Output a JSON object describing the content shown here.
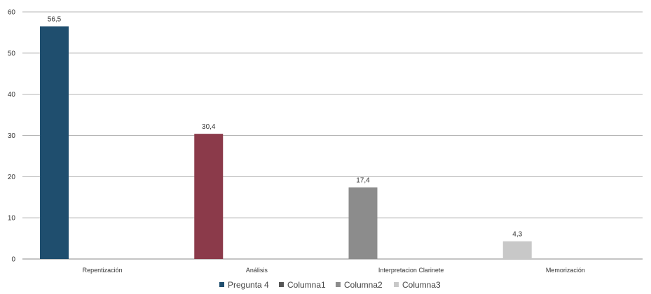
{
  "chart_data": {
    "type": "bar",
    "categories": [
      "Repentización",
      "Análisis",
      "Interpretacion Clarinete",
      "Memorización"
    ],
    "values": [
      56.5,
      30.4,
      17.4,
      4.3
    ],
    "value_labels": [
      "56,5",
      "30,4",
      "17,4",
      "4,3"
    ],
    "colors": [
      "#1f4e6e",
      "#8b3a4a",
      "#8c8c8c",
      "#c8c8c8"
    ],
    "yticks": [
      0,
      10,
      20,
      30,
      40,
      50,
      60
    ],
    "ylim": [
      0,
      60
    ],
    "grid": true,
    "legend_position": "bottom",
    "legend": [
      {
        "name": "Pregunta 4",
        "color": "#1f4e6e"
      },
      {
        "name": "Columna1",
        "color": "#555555"
      },
      {
        "name": "Columna2",
        "color": "#8c8c8c"
      },
      {
        "name": "Columna3",
        "color": "#c8c8c8"
      }
    ]
  }
}
